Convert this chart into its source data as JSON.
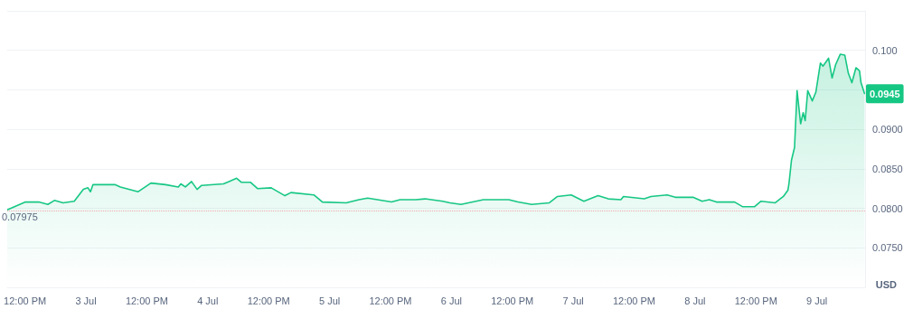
{
  "chart_data": {
    "type": "area",
    "x": [
      "--07-02T08:30",
      "--07-02T12:06",
      "--07-02T14:42",
      "--07-02T16:30",
      "--07-02T17:48",
      "--07-02T19:30",
      "--07-02T21:42",
      "--07-02T23:30",
      "--07-03T00:24",
      "--07-03T00:54",
      "--07-03T01:24",
      "--07-03T05:42",
      "--07-03T06:48",
      "--07-03T10:18",
      "--07-03T12:48",
      "--07-03T15:42",
      "--07-03T18:12",
      "--07-03T18:42",
      "--07-03T19:36",
      "--07-03T20:48",
      "--07-03T21:54",
      "--07-03T22:48",
      "--07-04T03:06",
      "--07-04T05:42",
      "--07-04T06:36",
      "--07-04T08:24",
      "--07-04T09:48",
      "--07-04T12:30",
      "--07-04T15:12",
      "--07-04T16:24",
      "--07-04T20:54",
      "--07-04T22:36",
      "--07-05T03:18",
      "--07-05T05:48",
      "--07-05T07:30",
      "--07-05T12:12",
      "--07-05T13:54",
      "--07-05T17:00",
      "--07-05T18:48",
      "--07-05T22:18",
      "--07-05T23:42",
      "--07-06T01:54",
      "--07-06T04:12",
      "--07-06T06:18",
      "--07-06T11:18",
      "--07-06T13:06",
      "--07-06T15:48",
      "--07-06T19:18",
      "--07-06T20:54",
      "--07-06T23:36",
      "--07-07T02:06",
      "--07-07T04:54",
      "--07-07T06:54",
      "--07-07T09:24",
      "--07-07T09:54",
      "--07-07T14:00",
      "--07-07T15:18",
      "--07-07T18:30",
      "--07-07T20:06",
      "--07-07T23:36",
      "--07-08T01:24",
      "--07-08T02:48",
      "--07-08T04:12",
      "--07-08T07:48",
      "--07-08T09:24",
      "--07-08T11:42",
      "--07-08T13:00",
      "--07-08T15:48",
      "--07-08T17:24",
      "--07-08T18:18",
      "--07-08T18:30",
      "--07-08T19:00",
      "--07-08T19:36",
      "--07-08T20:06",
      "--07-08T20:48",
      "--07-08T21:18",
      "--07-08T21:42",
      "--07-08T22:12",
      "--07-08T23:06",
      "--07-08T23:48",
      "--07-09T00:42",
      "--07-09T01:12",
      "--07-09T02:18",
      "--07-09T03:00",
      "--07-09T03:42",
      "--07-09T04:36",
      "--07-09T05:30",
      "--07-09T06:12",
      "--07-09T06:54",
      "--07-09T07:42",
      "--07-09T08:24",
      "--07-09T08:42",
      "--07-09T09:24"
    ],
    "series": [
      {
        "color": "#16c784",
        "values": [
          0.0798,
          0.0808,
          0.0808,
          0.0805,
          0.081,
          0.0807,
          0.0809,
          0.0824,
          0.0826,
          0.0821,
          0.083,
          0.083,
          0.0827,
          0.0821,
          0.0832,
          0.083,
          0.0827,
          0.0831,
          0.0827,
          0.0834,
          0.0824,
          0.0829,
          0.0831,
          0.0838,
          0.0833,
          0.0833,
          0.0825,
          0.0826,
          0.0816,
          0.082,
          0.0817,
          0.0808,
          0.0807,
          0.0811,
          0.0813,
          0.0808,
          0.0811,
          0.0811,
          0.0812,
          0.0809,
          0.0807,
          0.0805,
          0.0808,
          0.0811,
          0.0811,
          0.0808,
          0.0805,
          0.0807,
          0.0815,
          0.0817,
          0.0809,
          0.0816,
          0.0812,
          0.0811,
          0.0815,
          0.0812,
          0.0815,
          0.0817,
          0.0814,
          0.0814,
          0.0809,
          0.0811,
          0.0808,
          0.0808,
          0.0802,
          0.0802,
          0.0809,
          0.0807,
          0.0815,
          0.0823,
          0.0831,
          0.0861,
          0.0877,
          0.0949,
          0.0907,
          0.0921,
          0.0911,
          0.0949,
          0.0936,
          0.0947,
          0.0984,
          0.098,
          0.099,
          0.0965,
          0.0982,
          0.0995,
          0.0994,
          0.0971,
          0.0959,
          0.0978,
          0.0974,
          0.0959,
          0.0945
        ]
      }
    ],
    "xlim": [
      "--07-02T08:30",
      "--07-09T09:30"
    ],
    "xticks": [
      {
        "value": "--07-02T12:00",
        "label": "12:00 PM"
      },
      {
        "value": "--07-03T00:00",
        "label": "3 Jul"
      },
      {
        "value": "--07-03T12:00",
        "label": "12:00 PM"
      },
      {
        "value": "--07-04T00:00",
        "label": "4 Jul"
      },
      {
        "value": "--07-04T12:00",
        "label": "12:00 PM"
      },
      {
        "value": "--07-05T00:00",
        "label": "5 Jul"
      },
      {
        "value": "--07-05T12:00",
        "label": "12:00 PM"
      },
      {
        "value": "--07-06T00:00",
        "label": "6 Jul"
      },
      {
        "value": "--07-06T12:00",
        "label": "12:00 PM"
      },
      {
        "value": "--07-07T00:00",
        "label": "7 Jul"
      },
      {
        "value": "--07-07T12:00",
        "label": "12:00 PM"
      },
      {
        "value": "--07-08T00:00",
        "label": "8 Jul"
      },
      {
        "value": "--07-08T12:00",
        "label": "12:00 PM"
      },
      {
        "value": "--07-09T00:00",
        "label": "9 Jul"
      }
    ],
    "ylim": [
      0.07,
      0.105
    ],
    "yticks": [
      {
        "value": 0.075,
        "label": "0.0750"
      },
      {
        "value": 0.08,
        "label": "0.0800"
      },
      {
        "value": 0.085,
        "label": "0.0850"
      },
      {
        "value": 0.09,
        "label": "0.0900"
      },
      {
        "value": 0.095,
        "label": null
      },
      {
        "value": 0.1,
        "label": "0.100"
      },
      {
        "value": 0.105,
        "label": null
      }
    ],
    "grid": "y",
    "marker": "none",
    "ref_lines": [
      {
        "axis": "y",
        "value": 0.07975,
        "label": "0.07975",
        "color": "#f4a8ae",
        "line_style": "dotted"
      }
    ],
    "annotations": [
      {
        "text": "0.0945",
        "x": "--07-09T09:24",
        "y": 0.0945
      },
      "USD"
    ]
  }
}
